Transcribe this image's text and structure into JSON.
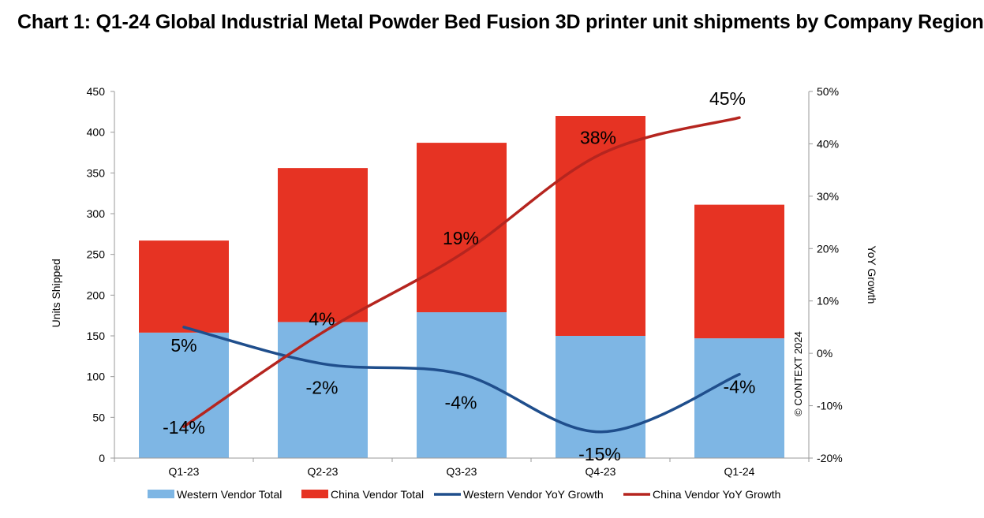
{
  "chart_data": {
    "type": "bar",
    "title": "Chart 1: Q1-24 Global Industrial Metal Powder Bed Fusion 3D printer unit shipments by Company Region",
    "categories": [
      "Q1-23",
      "Q2-23",
      "Q3-23",
      "Q4-23",
      "Q1-24"
    ],
    "stacked": true,
    "ylabel": "Units Shipped",
    "ylim": [
      0,
      450
    ],
    "yticks": [
      0,
      50,
      100,
      150,
      200,
      250,
      300,
      350,
      400,
      450
    ],
    "y2label": "YoY Growth",
    "y2lim": [
      -20,
      50
    ],
    "y2ticks": [
      "-20%",
      "-10%",
      "0%",
      "10%",
      "20%",
      "30%",
      "40%",
      "50%"
    ],
    "grid": false,
    "legend_position": "bottom",
    "watermark": "© CONTEXT 2024",
    "series": [
      {
        "name": "Western Vendor Total",
        "kind": "bar",
        "axis": "left",
        "color": "#7EB6E4",
        "values": [
          154,
          167,
          179,
          150,
          147
        ]
      },
      {
        "name": "China Vendor Total",
        "kind": "bar",
        "axis": "left",
        "color": "#E63323",
        "values": [
          113,
          189,
          208,
          270,
          164
        ]
      },
      {
        "name": "Western Vendor YoY Growth",
        "kind": "line",
        "axis": "right",
        "color": "#1F4E8C",
        "values": [
          5,
          -2,
          -4,
          -15,
          -4
        ],
        "labels": [
          "5%",
          "-2%",
          "-4%",
          "-15%",
          "-4%"
        ]
      },
      {
        "name": "China Vendor YoY Growth",
        "kind": "line",
        "axis": "right",
        "color": "#B5251F",
        "values": [
          -14,
          4,
          19,
          38,
          45
        ],
        "labels": [
          "-14%",
          "4%",
          "19%",
          "38%",
          "45%"
        ]
      }
    ]
  }
}
